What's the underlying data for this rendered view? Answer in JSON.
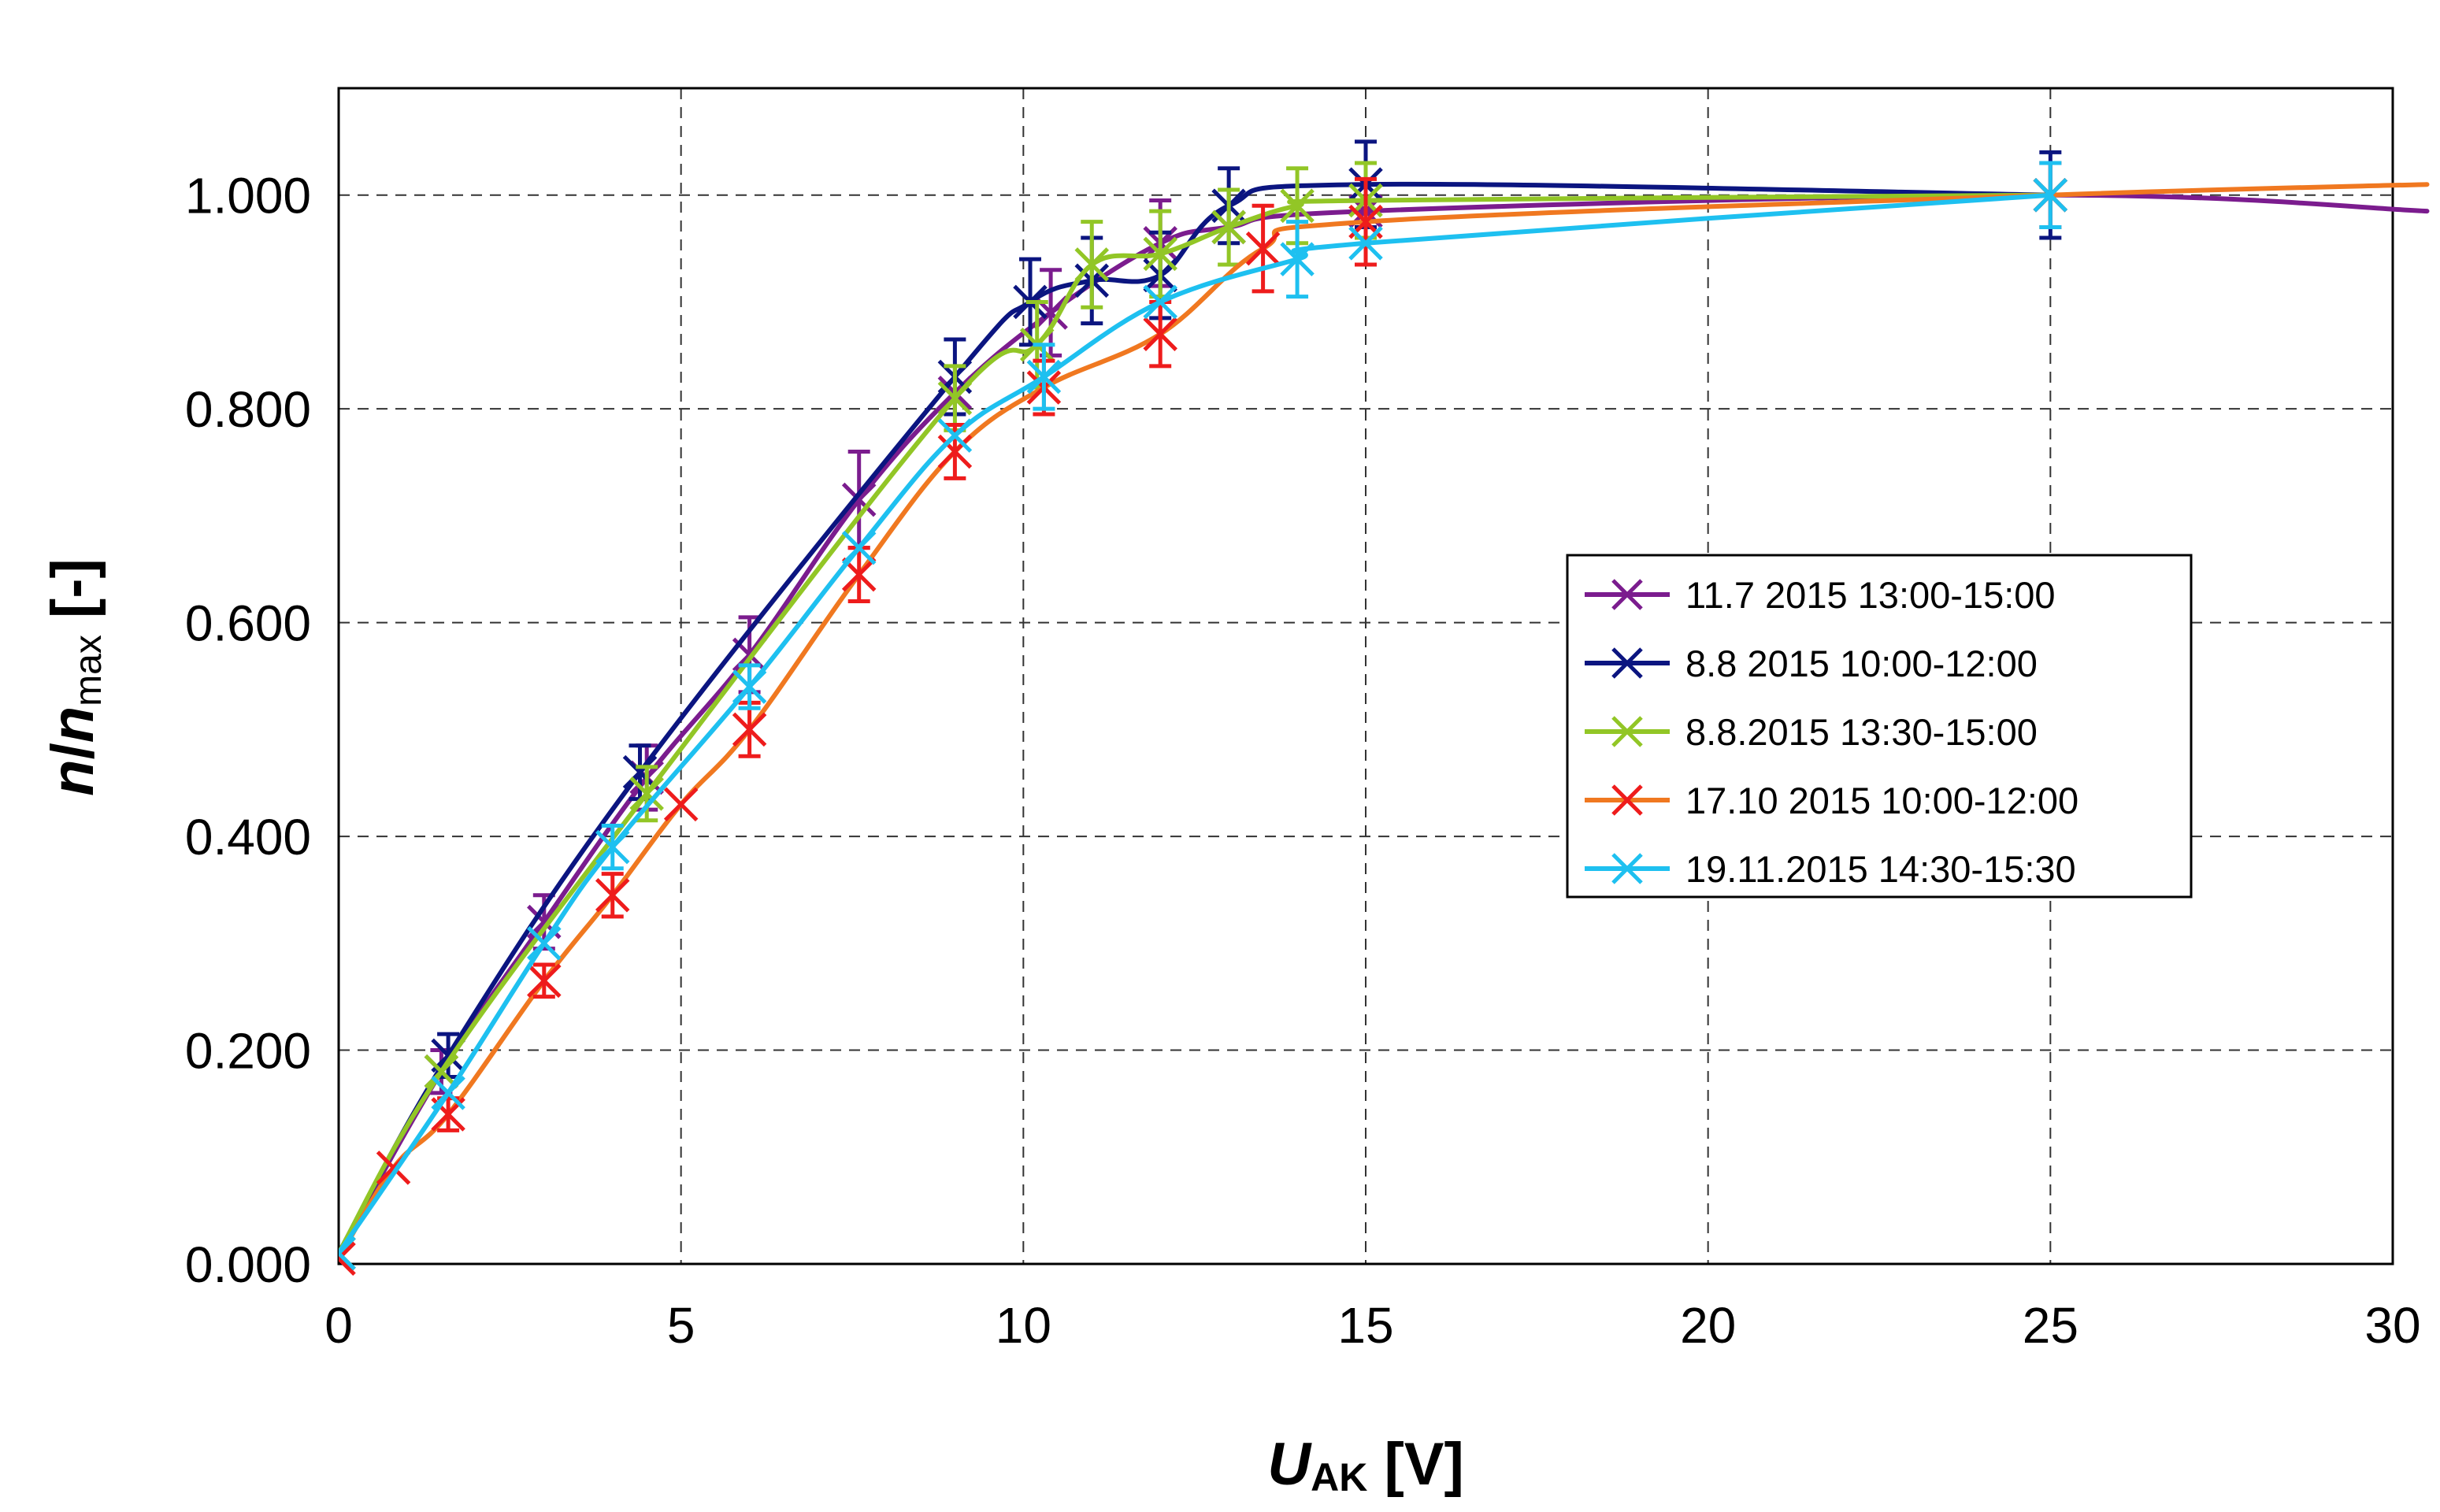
{
  "chart_data": {
    "type": "line",
    "xlabel": {
      "italic": "U",
      "subscript": "AK",
      "unit": " [V]"
    },
    "ylabel": {
      "italic_a": "n",
      "slash": "/",
      "italic_b": "n",
      "subscript": "max",
      "unit": " [-]"
    },
    "xlim": [
      0,
      30
    ],
    "ylim": [
      0,
      1.1
    ],
    "xticks": [
      0,
      5,
      10,
      15,
      20,
      25,
      30
    ],
    "xtick_labels": [
      "0",
      "5",
      "10",
      "15",
      "20",
      "25",
      "30"
    ],
    "yticks": [
      0,
      0.2,
      0.4,
      0.6,
      0.8,
      1.0
    ],
    "ytick_labels": [
      "0.000",
      "0.200",
      "0.400",
      "0.600",
      "0.800",
      "1.000"
    ],
    "grid": "dashed",
    "legend_position": "right-middle",
    "series": [
      {
        "name": "11.7 2015 13:00-15:00",
        "color": "#7B1C8E",
        "x": [
          0,
          1.5,
          3,
          4.5,
          6,
          7.6,
          9,
          10.4,
          12,
          13,
          15,
          25,
          30.5
        ],
        "y": [
          0.01,
          0.18,
          0.32,
          0.455,
          0.57,
          0.715,
          0.815,
          0.89,
          0.955,
          0.97,
          0.985,
          1.0,
          0.985
        ],
        "err": [
          0,
          0.02,
          0.025,
          0.03,
          0.035,
          0.045,
          0,
          0.04,
          0.04,
          0,
          0,
          0,
          0
        ]
      },
      {
        "name": "8.8 2015 10:00-12:00",
        "color": "#0B1580",
        "x": [
          0,
          1.6,
          4.4,
          9,
          10.1,
          11,
          12,
          13,
          15,
          25
        ],
        "y": [
          0.01,
          0.195,
          0.46,
          0.83,
          0.9,
          0.92,
          0.925,
          0.99,
          1.01,
          1.0
        ],
        "err": [
          0,
          0.02,
          0.025,
          0.035,
          0.04,
          0.04,
          0.04,
          0.035,
          0.04,
          0.04
        ]
      },
      {
        "name": "8.8.2015 13:30-15:00",
        "color": "#92C626",
        "x": [
          0,
          1.5,
          4.5,
          9,
          10.2,
          11,
          12,
          13,
          14,
          15,
          25
        ],
        "y": [
          0.01,
          0.18,
          0.44,
          0.81,
          0.86,
          0.935,
          0.945,
          0.97,
          0.99,
          0.995,
          1.0
        ],
        "err": [
          0,
          0,
          0.025,
          0.03,
          0.04,
          0.04,
          0.04,
          0.035,
          0.035,
          0.035,
          0
        ]
      },
      {
        "name": "17.10 2015 10:00-12:00",
        "color": "#F07820",
        "marker_color": "#EE1C1C",
        "x": [
          0,
          0.8,
          1.6,
          3,
          4,
          5,
          6,
          7.6,
          9,
          10.3,
          12,
          13.5,
          15,
          25,
          30.5
        ],
        "y": [
          0.005,
          0.09,
          0.14,
          0.265,
          0.345,
          0.43,
          0.5,
          0.645,
          0.76,
          0.82,
          0.87,
          0.95,
          0.975,
          1.0,
          1.01
        ],
        "err": [
          0,
          0,
          0.015,
          0.015,
          0.02,
          0,
          0.025,
          0.025,
          0.025,
          0.025,
          0.03,
          0.04,
          0.04,
          0.03,
          0
        ]
      },
      {
        "name": "19.11.2015 14:30-15:30",
        "color": "#1EC0F0",
        "x": [
          0,
          1.6,
          3,
          4,
          6,
          7.6,
          9,
          10.3,
          12,
          14,
          15,
          25
        ],
        "y": [
          0.01,
          0.16,
          0.3,
          0.39,
          0.54,
          0.67,
          0.775,
          0.83,
          0.9,
          0.94,
          0.955,
          1.0
        ],
        "err": [
          0,
          0,
          0,
          0.02,
          0.02,
          0,
          0,
          0.03,
          0,
          0.035,
          0,
          0.03
        ]
      }
    ]
  }
}
